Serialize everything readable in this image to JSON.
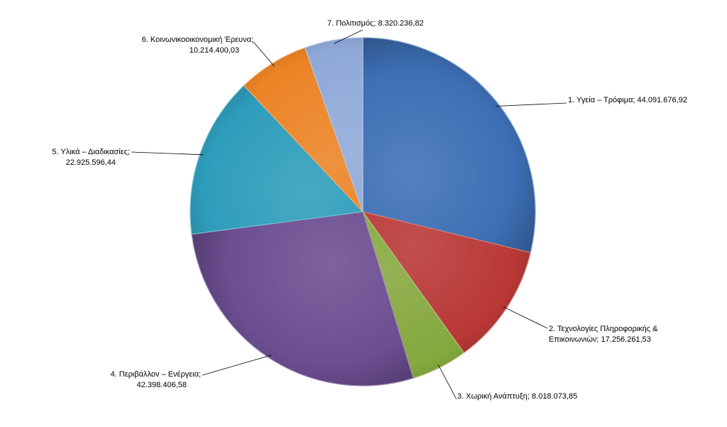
{
  "chart_data": {
    "type": "pie",
    "title": "",
    "categories": [
      "1. Υγεία – Τρόφιμα",
      "2. Τεχνολογίες Πληροφορικής & Επικοινωνιών",
      "3. Χωρική Ανάπτυξη",
      "4. Περιβάλλον – Ενέργεια",
      "5. Υλικά – Διαδικασίες",
      "6. Κοινωνικοοικονομική Έρευνα",
      "7. Πολιτισμός"
    ],
    "values": [
      44091676.92,
      17256261.53,
      8018073.85,
      42398406.58,
      22925596.44,
      10214400.03,
      8320236.82
    ],
    "value_labels": [
      "44.091.676,92",
      "17.256.261,53",
      "8.018.073,85",
      "42.398.406,58",
      "22.925.596,44",
      "10.214.400,03",
      "8.320.236,82"
    ],
    "colors": [
      "#3d6fb5",
      "#b93836",
      "#85a83e",
      "#6c4e91",
      "#2e9dbb",
      "#ec8325",
      "#8fa9d8"
    ],
    "label_lines": [
      [
        "1. Υγεία – Τρόφιμα; 44.091.676,92"
      ],
      [
        "2. Τεχνολογίες Πληροφορικής &",
        "Επικοινωνιών; 17.256.261,53"
      ],
      [
        "3. Χωρική Ανάπτυξη; 8.018.073,85"
      ],
      [
        "4. Περιβάλλον – Ενέργεια;",
        "42.398.406,58"
      ],
      [
        "5. Υλικά – Διαδικασίες;",
        "22.925.596,44"
      ],
      [
        "6. Κοινωνικοοικονομική Έρευνα;",
        "10.214.400,03"
      ],
      [
        "7. Πολιτισμός; 8.320.236,82"
      ]
    ],
    "legend": "none",
    "grid": false
  }
}
